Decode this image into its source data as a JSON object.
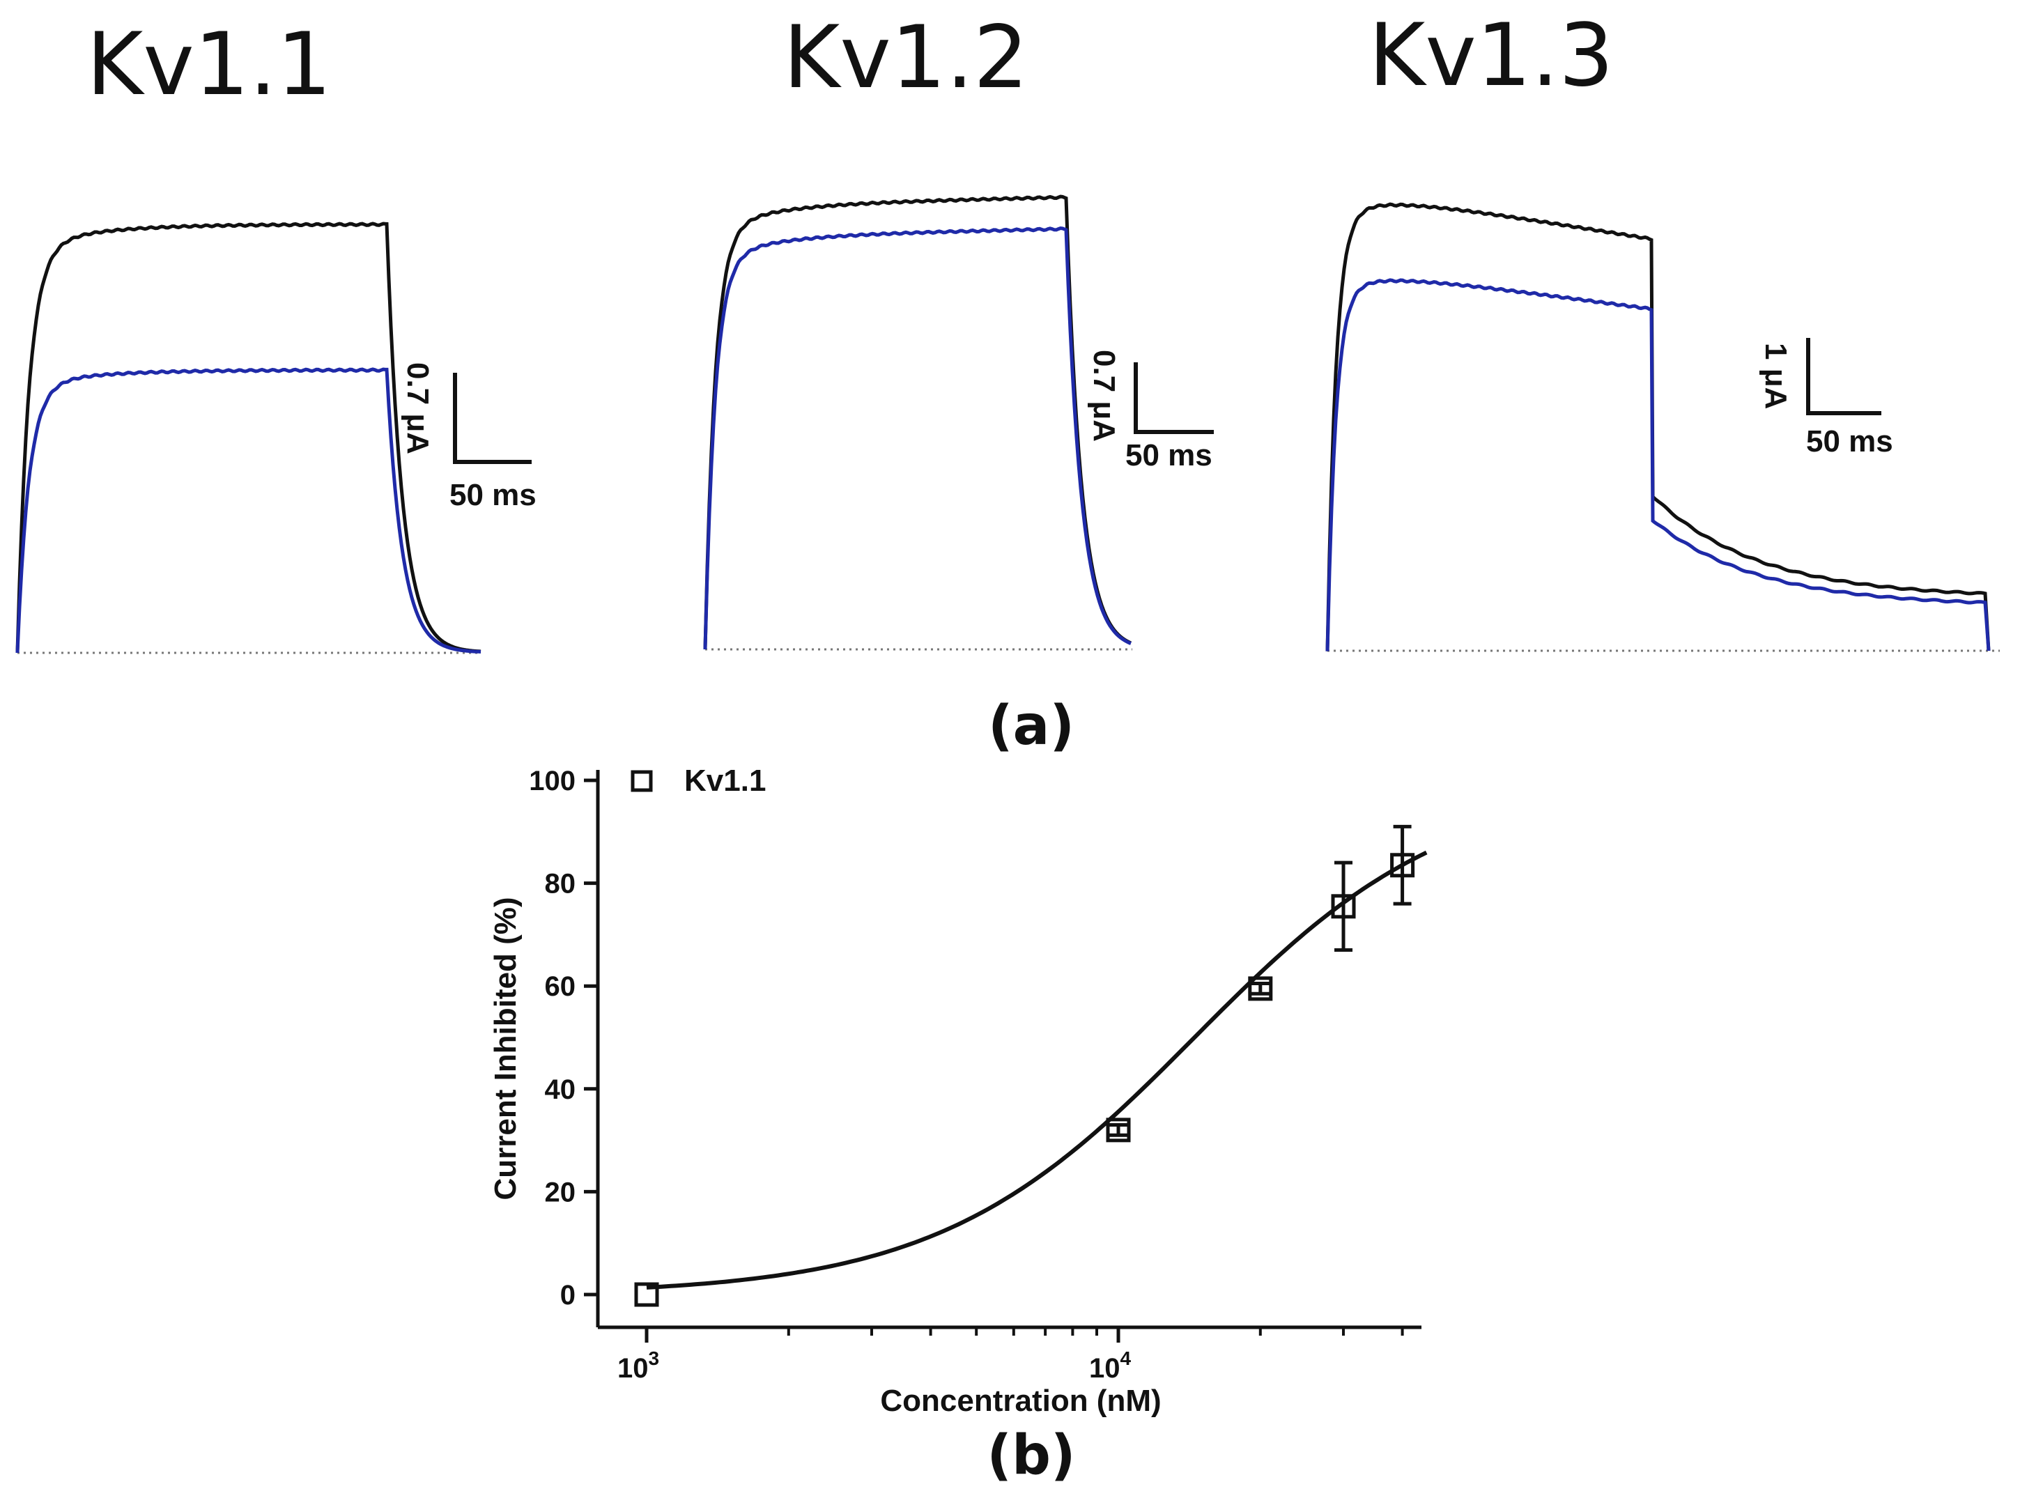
{
  "figure": {
    "panel_a_label": "(a)",
    "panel_b_label": "(b)"
  },
  "colors": {
    "control": "#111111",
    "treated": "#1f2aa8",
    "baseline": "#777777"
  },
  "traces": [
    {
      "title": "Kv1.1",
      "scale_current": "0.7 μA",
      "scale_time": "50 ms",
      "control_steady_fraction": 1.0,
      "treated_steady_fraction": 0.66
    },
    {
      "title": "Kv1.2",
      "scale_current": "0.7 μA",
      "scale_time": "50 ms",
      "control_steady_fraction": 1.0,
      "treated_steady_fraction": 0.93
    },
    {
      "title": "Kv1.3",
      "scale_current": "1 μA",
      "scale_time": "50 ms",
      "control_steady_fraction": 1.0,
      "treated_steady_fraction": 0.83
    }
  ],
  "chart_data": {
    "type": "scatter",
    "title": "",
    "xlabel": "Concentration (nM)",
    "ylabel": "Current Inhibited (%)",
    "xscale": "log",
    "xlim": [
      800,
      45000
    ],
    "ylim": [
      -6,
      102
    ],
    "x_ticks": [
      {
        "value": 1000,
        "base": "10",
        "exp": "3"
      },
      {
        "value": 10000,
        "base": "10",
        "exp": "4"
      }
    ],
    "y_ticks": [
      0,
      20,
      40,
      60,
      80,
      100
    ],
    "legend": {
      "label": "Kv1.1",
      "marker": "open-square",
      "position": "top-left"
    },
    "series": [
      {
        "name": "Kv1.1",
        "x": [
          1000,
          10000,
          20000,
          30000,
          40000
        ],
        "y": [
          0,
          32,
          59.5,
          75.5,
          83.5
        ],
        "err": [
          0,
          1,
          1,
          8.5,
          7.5
        ]
      }
    ],
    "fit": {
      "model": "hill",
      "ic50": 14500,
      "hill": 1.6,
      "top": 100,
      "x_range": [
        1000,
        45000
      ]
    }
  }
}
